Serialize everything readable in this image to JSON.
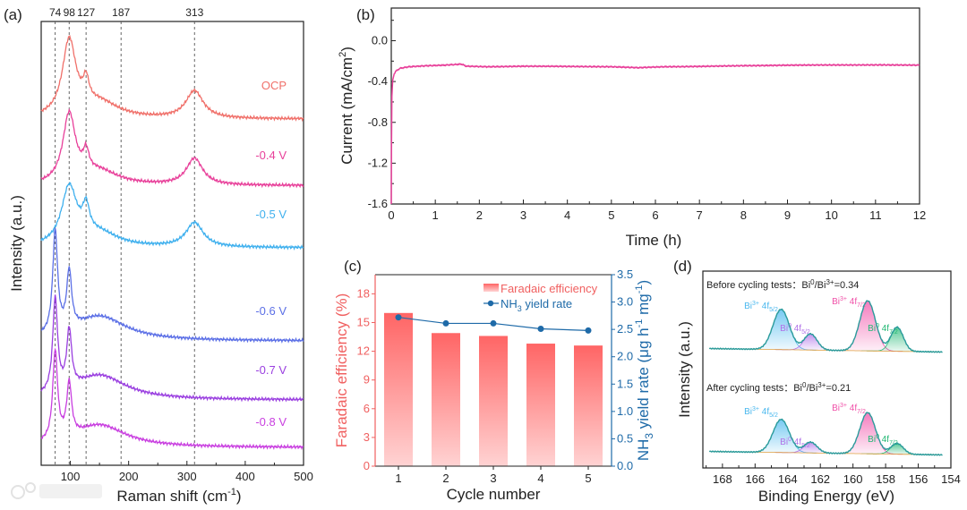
{
  "panels": {
    "a": {
      "letter": "(a)"
    },
    "b": {
      "letter": "(b)"
    },
    "c": {
      "letter": "(c)"
    },
    "d": {
      "letter": "(d)"
    }
  },
  "watermark": {
    "text": "大数跨境"
  },
  "chart_data": [
    {
      "id": "a",
      "type": "line",
      "title": "",
      "xlabel": {
        "main": "Raman shift (cm",
        "sup": "-1",
        "end": ")"
      },
      "ylabel": "Intensity (a.u.)",
      "xlim": [
        50,
        500
      ],
      "ylim": [
        0,
        10
      ],
      "xticks": [
        "100",
        "200",
        "300",
        "400",
        "500"
      ],
      "xtick_values": [
        100,
        200,
        300,
        400,
        500
      ],
      "reference_lines": [
        {
          "x": 74,
          "label": "74"
        },
        {
          "x": 98,
          "label": "98"
        },
        {
          "x": 127,
          "label": "127"
        },
        {
          "x": 187,
          "label": "187"
        },
        {
          "x": 313,
          "label": "313"
        }
      ],
      "series": [
        {
          "name": "OCP",
          "color": "#f0706a",
          "offset": 7.8,
          "peaks": [
            [
              98,
              1.7,
              14
            ],
            [
              127,
              0.5,
              6
            ],
            [
              150,
              0.35,
              40
            ],
            [
              313,
              0.62,
              18
            ]
          ]
        },
        {
          "name": "-0.4 V",
          "color": "#e8409a",
          "offset": 6.3,
          "peaks": [
            [
              98,
              1.55,
              13
            ],
            [
              127,
              0.45,
              6
            ],
            [
              150,
              0.3,
              40
            ],
            [
              313,
              0.6,
              17
            ]
          ]
        },
        {
          "name": "-0.5 V",
          "color": "#3fb0ee",
          "offset": 4.9,
          "peaks": [
            [
              98,
              1.3,
              16
            ],
            [
              127,
              0.6,
              7
            ],
            [
              150,
              0.3,
              40
            ],
            [
              313,
              0.55,
              18
            ]
          ]
        },
        {
          "name": "-0.6 V",
          "color": "#5b6fe6",
          "offset": 2.8,
          "peaks": [
            [
              74,
              2.3,
              5
            ],
            [
              98,
              1.3,
              5
            ],
            [
              150,
              0.55,
              55
            ]
          ]
        },
        {
          "name": "-0.7 V",
          "color": "#9a3fe0",
          "offset": 1.47,
          "peaks": [
            [
              74,
              2.1,
              5
            ],
            [
              98,
              1.3,
              5
            ],
            [
              150,
              0.55,
              55
            ]
          ]
        },
        {
          "name": "-0.8 V",
          "color": "#c93fe0",
          "offset": 0.4,
          "peaks": [
            [
              74,
              2.0,
              5
            ],
            [
              98,
              1.2,
              5
            ],
            [
              150,
              0.5,
              55
            ]
          ]
        }
      ]
    },
    {
      "id": "b",
      "type": "line",
      "title": "",
      "xlabel": "Time (h)",
      "ylabel": {
        "main": "Current (mA/cm",
        "sup": "2",
        "end": ")"
      },
      "xlim": [
        0,
        12
      ],
      "ylim": [
        -1.6,
        0.32
      ],
      "xticks": [
        "0",
        "1",
        "2",
        "3",
        "4",
        "5",
        "6",
        "7",
        "8",
        "9",
        "10",
        "11",
        "12"
      ],
      "yticks": [
        "0.0",
        "-0.4",
        "-0.8",
        "-1.2",
        "-1.6"
      ],
      "ytick_values": [
        0.0,
        -0.4,
        -0.8,
        -1.2,
        -1.6
      ],
      "color": "#e8409a",
      "points": [
        [
          0,
          -1.6
        ],
        [
          0.01,
          -0.6
        ],
        [
          0.03,
          -0.4
        ],
        [
          0.06,
          -0.33
        ],
        [
          0.1,
          -0.3
        ],
        [
          0.2,
          -0.27
        ],
        [
          0.4,
          -0.255
        ],
        [
          0.8,
          -0.245
        ],
        [
          1.2,
          -0.24
        ],
        [
          1.6,
          -0.23
        ],
        [
          1.7,
          -0.25
        ],
        [
          2.2,
          -0.255
        ],
        [
          3,
          -0.25
        ],
        [
          4,
          -0.252
        ],
        [
          5,
          -0.255
        ],
        [
          5.6,
          -0.265
        ],
        [
          6.2,
          -0.255
        ],
        [
          7,
          -0.252
        ],
        [
          8,
          -0.245
        ],
        [
          9,
          -0.24
        ],
        [
          10,
          -0.238
        ],
        [
          11,
          -0.237
        ],
        [
          12,
          -0.24
        ]
      ]
    },
    {
      "id": "c",
      "type": "bar",
      "title": "",
      "xlabel": "Cycle number",
      "ylabel": "Faradaic efficiency (%)",
      "y2label": {
        "a": "NH",
        "sub": "3",
        "b": " yield rate (μg h",
        "sup1": "-1",
        "c": " mg",
        "sup2": "-1",
        "d": ")"
      },
      "categories": [
        "1",
        "2",
        "3",
        "4",
        "5"
      ],
      "ylim": [
        0,
        20
      ],
      "y2lim": [
        0,
        3.5
      ],
      "yticks": [
        "0",
        "3",
        "6",
        "9",
        "12",
        "15",
        "18"
      ],
      "ytick_values": [
        0,
        3,
        6,
        9,
        12,
        15,
        18
      ],
      "y2ticks": [
        "0.0",
        "0.5",
        "1.0",
        "1.5",
        "2.0",
        "2.5",
        "3.0",
        "3.5"
      ],
      "y2tick_values": [
        0,
        0.5,
        1.0,
        1.5,
        2.0,
        2.5,
        3.0,
        3.5
      ],
      "series": [
        {
          "name": "Faradaic efficiency",
          "axis": "left",
          "type": "bar",
          "color": "#ff6b6b",
          "values": [
            16.0,
            13.9,
            13.6,
            12.8,
            12.6
          ]
        },
        {
          "name": {
            "a": "NH",
            "sub": "3",
            "b": " yield rate"
          },
          "axis": "right",
          "type": "line",
          "color": "#1e6aa8",
          "values": [
            2.72,
            2.61,
            2.61,
            2.51,
            2.48
          ]
        }
      ],
      "left_color": "#f06060",
      "right_color": "#1e6aa8",
      "legend_position": "top-right"
    },
    {
      "id": "d",
      "type": "line",
      "title": "",
      "xlabel": "Binding Energy (eV)",
      "ylabel": "Intensity (a.u.)",
      "xlim": [
        169.2,
        154
      ],
      "xticks": [
        "168",
        "166",
        "164",
        "162",
        "160",
        "158",
        "156",
        "154"
      ],
      "xtick_values": [
        168,
        166,
        164,
        162,
        160,
        158,
        156,
        154
      ],
      "envelope_color": "#2a9b9b",
      "spectra": [
        {
          "annotation": {
            "a": "Before cycling tests：Bi",
            "sup1": "0",
            "b": "/Bi",
            "sup2": "3+",
            "c": "=0.34"
          },
          "offset": 13,
          "components": [
            {
              "label": {
                "ion": "Bi",
                "sup": "3+",
                "orb": " 4f",
                "sub": "5/2"
              },
              "center": 164.4,
              "height": 4.5,
              "sigma": 0.5,
              "color": "#4ab8ee"
            },
            {
              "label": {
                "ion": "Bi",
                "sup": "0",
                "orb": " 4f",
                "sub": "5/2"
              },
              "center": 162.6,
              "height": 1.8,
              "sigma": 0.4,
              "color": "#b070e8"
            },
            {
              "label": {
                "ion": "Bi",
                "sup": "3+",
                "orb": " 4f",
                "sub": "7/2"
              },
              "center": 159.1,
              "height": 5.6,
              "sigma": 0.48,
              "color": "#f050a8"
            },
            {
              "label": {
                "ion": "Bi",
                "sup": "0",
                "orb": " 4f",
                "sub": "7/2"
              },
              "center": 157.3,
              "height": 2.7,
              "sigma": 0.38,
              "color": "#22b874"
            }
          ]
        },
        {
          "annotation": {
            "a": "After cycling tests：Bi",
            "sup1": "0",
            "b": "/Bi",
            "sup2": "3+",
            "c": "=0.21"
          },
          "offset": 1.5,
          "components": [
            {
              "label": {
                "ion": "Bi",
                "sup": "3+",
                "orb": " 4f",
                "sub": "5/2"
              },
              "center": 164.4,
              "height": 3.7,
              "sigma": 0.5,
              "color": "#4ab8ee"
            },
            {
              "label": {
                "ion": "Bi",
                "sup": "0",
                "orb": " 4f",
                "sub": "5/2"
              },
              "center": 162.6,
              "height": 1.2,
              "sigma": 0.4,
              "color": "#b070e8"
            },
            {
              "label": {
                "ion": "Bi",
                "sup": "3+",
                "orb": " 4f",
                "sub": "7/2"
              },
              "center": 159.1,
              "height": 4.6,
              "sigma": 0.48,
              "color": "#f050a8"
            },
            {
              "label": {
                "ion": "Bi",
                "sup": "0",
                "orb": " 4f",
                "sub": "7/2"
              },
              "center": 157.3,
              "height": 1.2,
              "sigma": 0.38,
              "color": "#22b874"
            }
          ]
        }
      ]
    }
  ]
}
